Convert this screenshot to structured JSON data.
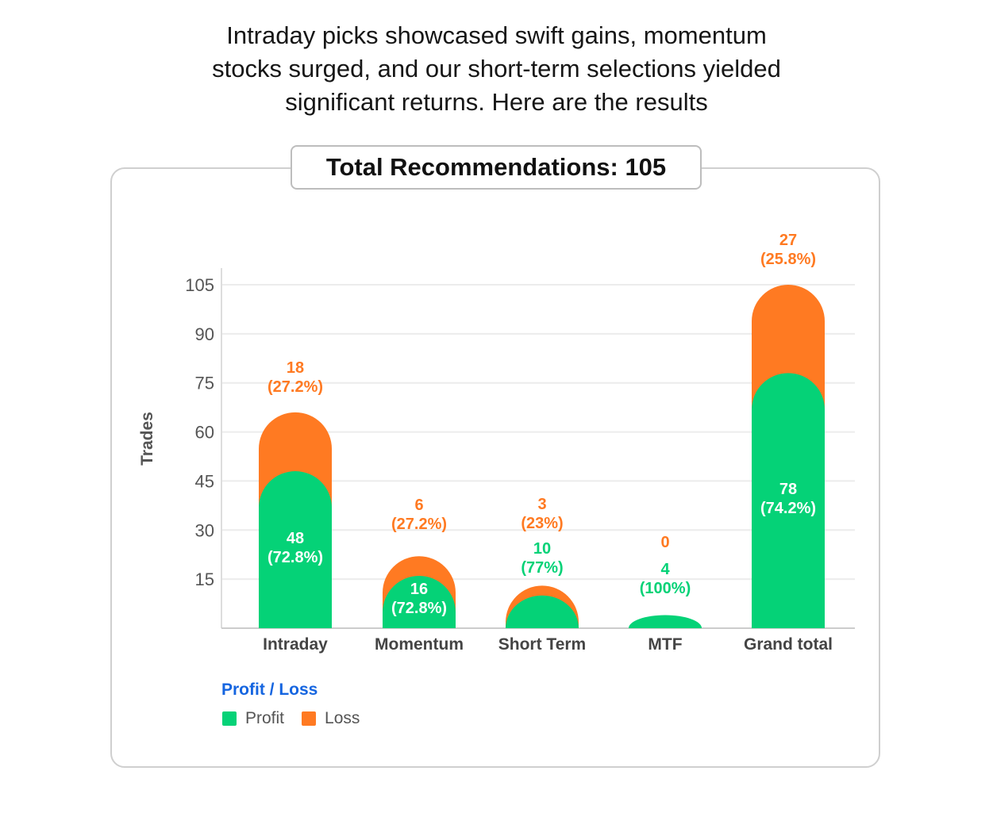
{
  "intro": {
    "lines": [
      "Intraday picks showcased swift gains, momentum",
      "stocks surged, and our short-term selections yielded",
      "significant returns. Here are the results"
    ]
  },
  "total_label": "Total Recommendations: 105",
  "legend": {
    "title": "Profit / Loss",
    "items": [
      {
        "label": "Profit",
        "color": "#05d277"
      },
      {
        "label": "Loss",
        "color": "#ff7a22"
      }
    ]
  },
  "chart_data": {
    "type": "bar",
    "stacked": true,
    "title": "",
    "xlabel": "",
    "ylabel": "Trades",
    "ylim": [
      0,
      105
    ],
    "yticks": [
      15,
      30,
      45,
      60,
      75,
      90,
      105
    ],
    "grid": true,
    "categories": [
      "Intraday",
      "Momentum",
      "Short Term",
      "MTF",
      "Grand total"
    ],
    "series": [
      {
        "name": "Profit",
        "color": "#05d277",
        "values": [
          48,
          16,
          10,
          4,
          78
        ],
        "labels": [
          "48\n(72.8%)",
          "16\n(72.8%)",
          "10\n(77%)",
          "4\n(100%)",
          "78\n(74.2%)"
        ]
      },
      {
        "name": "Loss",
        "color": "#ff7a22",
        "values": [
          18,
          6,
          3,
          0,
          27
        ],
        "labels": [
          "18\n(27.2%)",
          "6\n(27.2%)",
          "3\n(23%)",
          "0",
          "27\n(25.8%)"
        ]
      }
    ]
  }
}
